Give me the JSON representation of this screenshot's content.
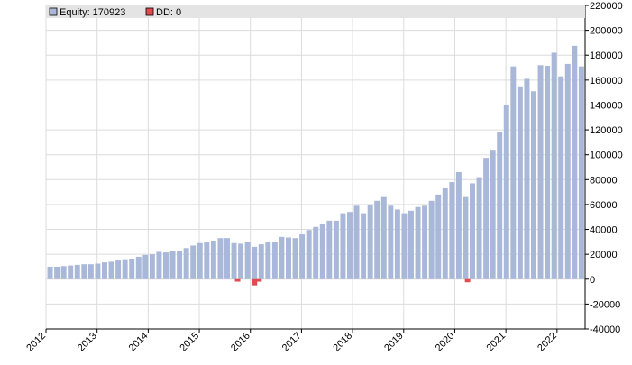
{
  "chart_data": {
    "type": "bar",
    "title": "",
    "xlabel": "",
    "ylabel": "",
    "ylim": [
      -40000,
      220000
    ],
    "y_ticks": [
      -40000,
      -20000,
      0,
      20000,
      40000,
      60000,
      80000,
      100000,
      120000,
      140000,
      160000,
      180000,
      200000,
      220000
    ],
    "y_tick_labels": [
      "-40000",
      "-20000",
      "0",
      "20000",
      "40000",
      "60000",
      "80000",
      "100000",
      "120000",
      "140000",
      "160000",
      "180000",
      "200000",
      "220000"
    ],
    "x_range": [
      2012.0,
      2022.55
    ],
    "x_ticks": [
      2012,
      2013,
      2014,
      2015,
      2016,
      2017,
      2018,
      2019,
      2020,
      2021,
      2022
    ],
    "x_tick_labels": [
      "2012",
      "2013",
      "2014",
      "2015",
      "2016",
      "2017",
      "2018",
      "2019",
      "2020",
      "2021",
      "2022"
    ],
    "grid": true,
    "legend_position": "top-left",
    "series": [
      {
        "name": "Equity: 170923",
        "color": "#a9b7d9",
        "values": [
          10000,
          10000,
          10500,
          11000,
          11500,
          12000,
          12000,
          12500,
          13500,
          14000,
          15000,
          16000,
          16500,
          18000,
          19500,
          20000,
          22000,
          21500,
          23000,
          23000,
          25000,
          27000,
          29000,
          30000,
          31000,
          33000,
          33000,
          29000,
          28500,
          30000,
          26000,
          28000,
          30000,
          30000,
          34000,
          33500,
          33000,
          36000,
          39500,
          42000,
          44000,
          47000,
          47000,
          53000,
          54000,
          59000,
          53000,
          59500,
          63000,
          66000,
          59000,
          56000,
          53000,
          55000,
          58000,
          59000,
          63000,
          68000,
          73000,
          78000,
          86000,
          66000,
          77000,
          82000,
          97500,
          104000,
          118000,
          140000,
          171000,
          155000,
          161000,
          151000,
          172000,
          171500,
          182000,
          163000,
          173000,
          187500,
          171000
        ]
      },
      {
        "name": "DD: 0",
        "color": "#e34a4f",
        "points": [
          {
            "x": 2015.75,
            "value": -2000
          },
          {
            "x": 2016.08,
            "value": -5000
          },
          {
            "x": 2016.17,
            "value": -2000
          },
          {
            "x": 2020.25,
            "value": -2500
          }
        ]
      }
    ],
    "equity_start": 2012.08,
    "equity_step": 0.1333
  },
  "legend": {
    "equity_label": "Equity: 170923",
    "dd_label": "DD: 0"
  }
}
